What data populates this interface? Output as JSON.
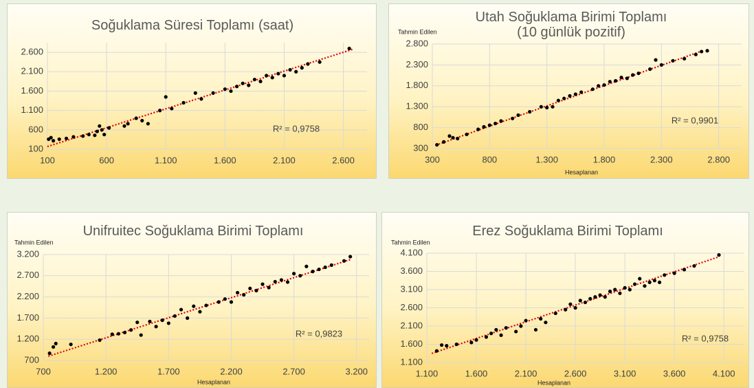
{
  "chart_data": [
    {
      "type": "scatter",
      "title": "Soğuklama Süresi Toplamı (saat)",
      "annotation": "R² = 0,9758",
      "color": "#000000",
      "trend_color": "#e00000",
      "xlim": [
        100,
        2800
      ],
      "ylim": [
        100,
        2850
      ],
      "xticks": [
        100,
        600,
        {
          "value": 1100,
          "label": "1.100"
        },
        {
          "value": 1600,
          "label": "1.600"
        },
        {
          "value": 2100,
          "label": "2.100"
        },
        {
          "value": 2600,
          "label": "2.600"
        }
      ],
      "yticks": [
        100,
        600,
        {
          "value": 1100,
          "label": "1.100"
        },
        {
          "value": 1600,
          "label": "1.600"
        },
        {
          "value": 2100,
          "label": "2.100"
        },
        {
          "value": 2600,
          "label": "2.600"
        }
      ],
      "x": [
        110,
        130,
        150,
        200,
        260,
        320,
        400,
        450,
        500,
        520,
        540,
        560,
        580,
        620,
        750,
        780,
        850,
        900,
        950,
        1050,
        1100,
        1150,
        1250,
        1350,
        1400,
        1500,
        1600,
        1650,
        1700,
        1750,
        1800,
        1850,
        1900,
        1950,
        2000,
        2050,
        2100,
        2150,
        2200,
        2250,
        2300,
        2400,
        2650
      ],
      "values": [
        360,
        400,
        320,
        360,
        380,
        420,
        440,
        480,
        460,
        560,
        700,
        600,
        480,
        650,
        700,
        760,
        900,
        840,
        760,
        1100,
        1450,
        1150,
        1300,
        1550,
        1400,
        1550,
        1650,
        1600,
        1720,
        1800,
        1750,
        1900,
        1850,
        2000,
        1950,
        2050,
        2000,
        2150,
        2100,
        2200,
        2300,
        2350,
        2700
      ],
      "trendline": {
        "x": [
          100,
          2680
        ],
        "y": [
          170,
          2680
        ]
      }
    },
    {
      "type": "scatter",
      "title": "Utah Soğuklama Birimi Toplamı (10 günlük pozitif)",
      "y_label": "Tahmin Edilen",
      "x_label": "Hesaplanan",
      "annotation": "R² = 0,9901",
      "color": "#000000",
      "trend_color": "#e00000",
      "xlim": [
        300,
        3000
      ],
      "ylim": [
        300,
        2800
      ],
      "xticks": [
        300,
        800,
        {
          "value": 1300,
          "label": "1.300"
        },
        {
          "value": 1800,
          "label": "1.800"
        },
        {
          "value": 2300,
          "label": "2.300"
        },
        {
          "value": 2800,
          "label": "2.800"
        }
      ],
      "yticks": [
        300,
        800,
        {
          "value": 1300,
          "label": "1.300"
        },
        {
          "value": 1800,
          "label": "1.800"
        },
        {
          "value": 2300,
          "label": "2.300"
        },
        {
          "value": 2800,
          "label": "2.800"
        }
      ],
      "x": [
        340,
        400,
        450,
        480,
        520,
        600,
        700,
        750,
        800,
        850,
        900,
        1000,
        1050,
        1150,
        1250,
        1300,
        1350,
        1400,
        1450,
        1500,
        1550,
        1600,
        1700,
        1750,
        1800,
        1850,
        1900,
        1950,
        2000,
        2050,
        2100,
        2200,
        2250,
        2300,
        2400,
        2500,
        2600,
        2650,
        2700
      ],
      "values": [
        390,
        460,
        600,
        560,
        540,
        640,
        760,
        820,
        860,
        900,
        960,
        1020,
        1100,
        1180,
        1300,
        1280,
        1300,
        1450,
        1500,
        1560,
        1600,
        1650,
        1720,
        1800,
        1820,
        1900,
        1920,
        2000,
        1980,
        2060,
        2100,
        2200,
        2420,
        2300,
        2400,
        2450,
        2550,
        2620,
        2640
      ],
      "trendline": {
        "x": [
          330,
          2650
        ],
        "y": [
          380,
          2630
        ]
      }
    },
    {
      "type": "scatter",
      "title": "Unifruitec Soğuklama Birimi Toplamı",
      "y_label": "Tahmin Edilen",
      "x_label": "Hesaplanan",
      "annotation": "R² = 0,9823",
      "color": "#000000",
      "trend_color": "#e00000",
      "xlim": [
        700,
        3300
      ],
      "ylim": [
        700,
        3200
      ],
      "xticks": [
        700,
        {
          "value": 1200,
          "label": "1.200"
        },
        {
          "value": 1700,
          "label": "1.700"
        },
        {
          "value": 2200,
          "label": "2.200"
        },
        {
          "value": 2700,
          "label": "2.700"
        },
        {
          "value": 3200,
          "label": "3.200"
        }
      ],
      "yticks": [
        700,
        {
          "value": 1200,
          "label": "1.200"
        },
        {
          "value": 1700,
          "label": "1.700"
        },
        {
          "value": 2200,
          "label": "2.200"
        },
        {
          "value": 2700,
          "label": "2.700"
        },
        {
          "value": 3200,
          "label": "3.200"
        }
      ],
      "x": [
        750,
        780,
        800,
        920,
        1150,
        1250,
        1300,
        1350,
        1400,
        1450,
        1480,
        1550,
        1600,
        1650,
        1700,
        1750,
        1800,
        1850,
        1900,
        1950,
        2000,
        2100,
        2150,
        2200,
        2250,
        2300,
        2350,
        2400,
        2450,
        2500,
        2550,
        2600,
        2650,
        2700,
        2750,
        2800,
        2850,
        2900,
        2950,
        3000,
        3100,
        3150
      ],
      "values": [
        870,
        1020,
        1100,
        1080,
        1180,
        1320,
        1330,
        1360,
        1420,
        1600,
        1300,
        1620,
        1500,
        1650,
        1580,
        1750,
        1900,
        1700,
        1980,
        1850,
        2000,
        2080,
        2150,
        2080,
        2300,
        2250,
        2400,
        2350,
        2500,
        2420,
        2560,
        2600,
        2550,
        2750,
        2700,
        2920,
        2800,
        2850,
        2900,
        2950,
        3050,
        3150
      ],
      "trendline": {
        "x": [
          740,
          3150
        ],
        "y": [
          800,
          3080
        ]
      }
    },
    {
      "type": "scatter",
      "title": "Erez Soğuklama Birimi Toplamı",
      "y_label": "Tahmin Edilen",
      "x_label": "Hesaplanan",
      "annotation": "R² = 0,9758",
      "color": "#000000",
      "trend_color": "#e00000",
      "xlim": [
        1100,
        4300
      ],
      "ylim": [
        1100,
        4100
      ],
      "xticks": [
        {
          "value": 1100,
          "label": "1.100"
        },
        {
          "value": 1600,
          "label": "1.600"
        },
        {
          "value": 2100,
          "label": "2.100"
        },
        {
          "value": 2600,
          "label": "2.600"
        },
        {
          "value": 3100,
          "label": "3.100"
        },
        {
          "value": 3600,
          "label": "3.600"
        },
        {
          "value": 4100,
          "label": "4.100"
        }
      ],
      "yticks": [
        {
          "value": 1100,
          "label": "1.100"
        },
        {
          "value": 1600,
          "label": "1.600"
        },
        {
          "value": 2100,
          "label": "2.100"
        },
        {
          "value": 2600,
          "label": "2.600"
        },
        {
          "value": 3100,
          "label": "3.100"
        },
        {
          "value": 3600,
          "label": "3.600"
        },
        {
          "value": 4100,
          "label": "4.100"
        }
      ],
      "x": [
        1200,
        1250,
        1300,
        1400,
        1550,
        1600,
        1700,
        1750,
        1800,
        1850,
        1900,
        2000,
        2050,
        2100,
        2200,
        2250,
        2300,
        2400,
        2500,
        2550,
        2600,
        2650,
        2700,
        2750,
        2800,
        2850,
        2900,
        2950,
        3000,
        3050,
        3100,
        3150,
        3200,
        3250,
        3300,
        3350,
        3400,
        3450,
        3500,
        3600,
        3700,
        3800,
        4050
      ],
      "values": [
        1420,
        1580,
        1560,
        1600,
        1650,
        1720,
        1800,
        1900,
        2000,
        1850,
        2050,
        1950,
        2100,
        2250,
        2000,
        2300,
        2200,
        2450,
        2550,
        2700,
        2600,
        2800,
        2750,
        2850,
        2900,
        2950,
        2900,
        3050,
        3100,
        3000,
        3150,
        3100,
        3250,
        3400,
        3200,
        3300,
        3350,
        3300,
        3500,
        3550,
        3650,
        3750,
        4050
      ],
      "trendline": {
        "x": [
          1150,
          4050
        ],
        "y": [
          1350,
          4000
        ]
      }
    }
  ]
}
